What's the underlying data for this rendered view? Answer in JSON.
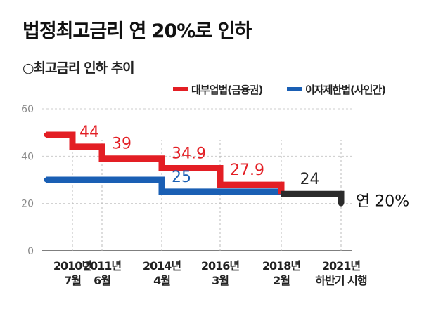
{
  "title": "법정최고금리 연 20%로 인하",
  "subtitle": "○최고금리 인하 추이",
  "chart_data": {
    "type": "line",
    "ylim": [
      0,
      60
    ],
    "yticks": [
      0,
      20,
      40,
      60
    ],
    "grid": true,
    "legend_position": "top-right",
    "colors": {
      "red": "#e31e24",
      "blue": "#1a5fb4",
      "dark": "#2b2b2b",
      "grid": "#cccccc"
    },
    "events": [
      {
        "date": "2010-07",
        "label_top": "2010년",
        "label_bottom": "7월"
      },
      {
        "date": "2011-06",
        "label_top": "2011년",
        "label_bottom": "6월"
      },
      {
        "date": "2014-04",
        "label_top": "2014년",
        "label_bottom": "4월"
      },
      {
        "date": "2016-03",
        "label_top": "2016년",
        "label_bottom": "3월"
      },
      {
        "date": "2018-02",
        "label_top": "2018년",
        "label_bottom": "2월"
      },
      {
        "date": "2021-07",
        "label_top": "2021년",
        "label_bottom": "하반기 시행"
      }
    ],
    "series": [
      {
        "name": "대부업법(금융권)",
        "color": "#e31e24",
        "points": [
          {
            "x": "2009-12",
            "y": 49
          },
          {
            "x": "2010-07",
            "y": 44
          },
          {
            "x": "2011-06",
            "y": 39
          },
          {
            "x": "2014-04",
            "y": 34.9
          },
          {
            "x": "2016-03",
            "y": 27.9
          },
          {
            "x": "2018-02",
            "y": 24
          }
        ],
        "labels": [
          {
            "x": "2010-07",
            "y": 44,
            "text": "44"
          },
          {
            "x": "2011-06",
            "y": 39,
            "text": "39"
          },
          {
            "x": "2014-04",
            "y": 34.9,
            "text": "34.9"
          },
          {
            "x": "2016-03",
            "y": 27.9,
            "text": "27.9"
          }
        ]
      },
      {
        "name": "이자제한법(사인간)",
        "color": "#1a5fb4",
        "points": [
          {
            "x": "2009-12",
            "y": 30
          },
          {
            "x": "2014-04",
            "y": 25
          },
          {
            "x": "2018-02",
            "y": 24
          }
        ],
        "labels": [
          {
            "x": "2014-04",
            "y": 25,
            "text": "25"
          }
        ]
      }
    ],
    "combined": {
      "color": "#2b2b2b",
      "start": "2018-02",
      "end": "2021-07",
      "y_from": 24,
      "y_to": 20,
      "label": {
        "text": "24"
      },
      "final_label": "연 20%"
    }
  }
}
